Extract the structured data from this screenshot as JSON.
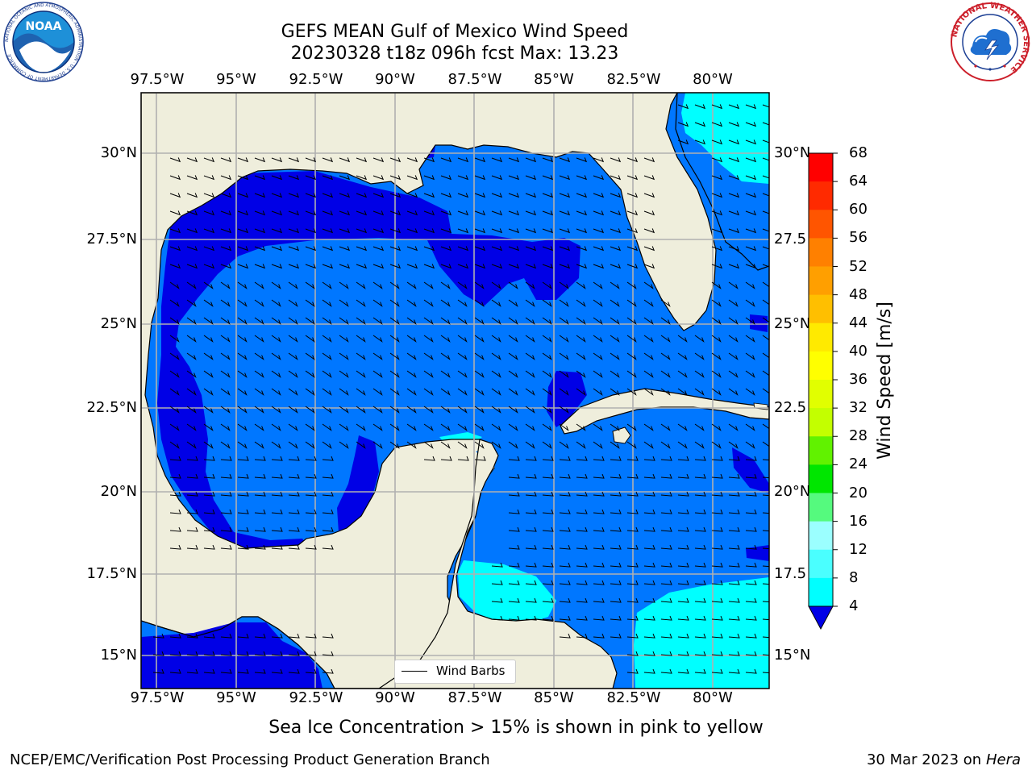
{
  "title": {
    "line1": "GEFS MEAN Gulf of Mexico Wind Speed",
    "line2": "20230328 t18z 096h fcst   Max: 13.23"
  },
  "lon_ticks": [
    "97.5°W",
    "95°W",
    "92.5°W",
    "90°W",
    "87.5°W",
    "85°W",
    "82.5°W",
    "80°W"
  ],
  "lat_ticks": [
    "30°N",
    "27.5°N",
    "25°N",
    "22.5°N",
    "20°N",
    "17.5°N",
    "15°N"
  ],
  "lat_ticks_right": [
    "30°N",
    "27.5",
    "25°N",
    "22.5",
    "20°N",
    "17.5",
    "15°N"
  ],
  "colorbar": {
    "label": "Wind Speed [m/s]",
    "ticks": [
      "68",
      "64",
      "60",
      "56",
      "52",
      "48",
      "44",
      "40",
      "36",
      "32",
      "28",
      "24",
      "20",
      "16",
      "12",
      "8",
      "4"
    ],
    "colors": [
      "#ff0000",
      "#ff2a00",
      "#ff5500",
      "#ff8000",
      "#ff9f00",
      "#ffbf00",
      "#ffea00",
      "#ffff00",
      "#e1ff00",
      "#c3ff00",
      "#61f200",
      "#00e600",
      "#55fa7e",
      "#9bffff",
      "#4affff",
      "#00ffff",
      "#0077ff"
    ],
    "extend_color": "#0000e6"
  },
  "legend": {
    "label": "Wind Barbs"
  },
  "footer": {
    "note": "Sea Ice Concentration > 15% is shown in pink to yellow",
    "left": "NCEP/EMC/Verification Post Processing Product Generation Branch",
    "date": "30 Mar 2023 on",
    "machine": "Hera"
  },
  "logos": {
    "noaa_text": "NOAA",
    "noaa_ring": "NATIONAL OCEANIC AND ATMOSPHERIC ADMINISTRATION · U.S. DEPARTMENT OF COMMERCE",
    "nws_ring": "NATIONAL WEATHER SERVICE"
  },
  "map_colors": {
    "land": "#efeedc",
    "low": "#0000e6",
    "mid": "#0077ff",
    "high": "#00ffff",
    "grid": "#b0b0b0"
  },
  "map_extent": {
    "lon": [
      -98,
      -78
    ],
    "lat": [
      14,
      31.8
    ]
  }
}
